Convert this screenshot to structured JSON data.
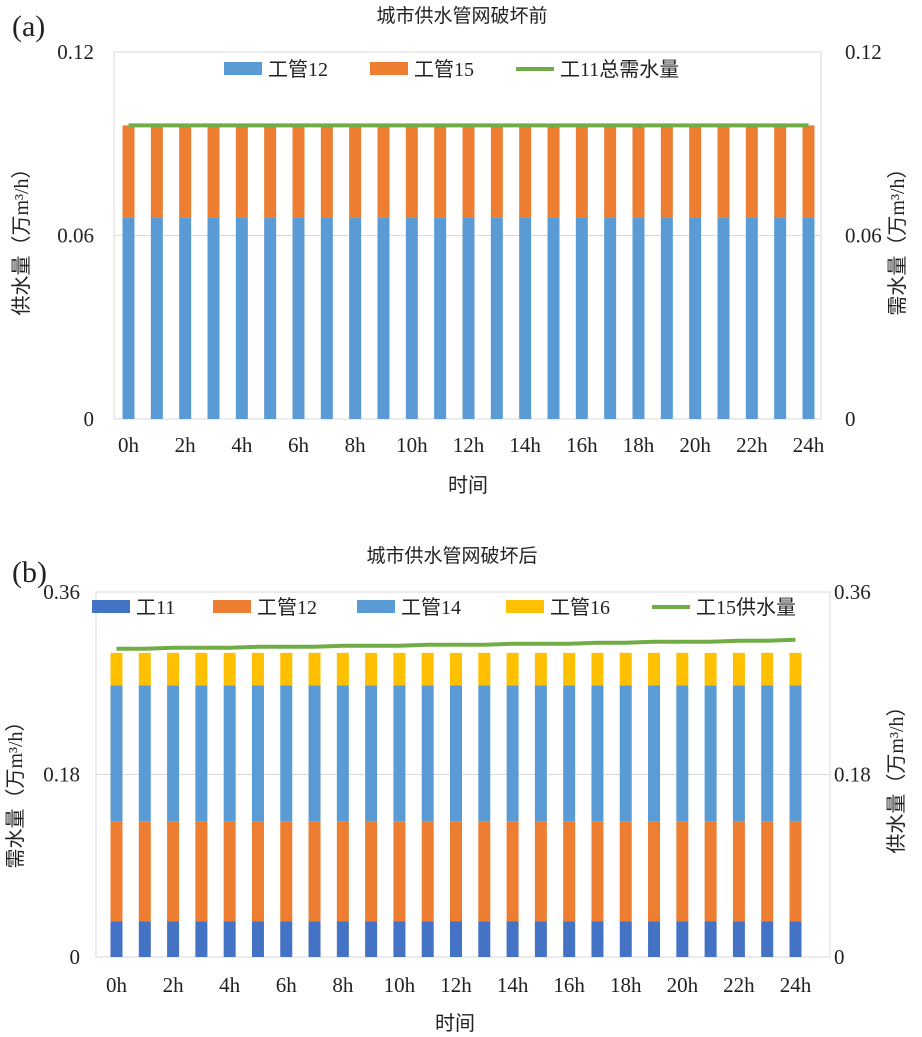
{
  "chart_data": [
    {
      "panel": "(a)",
      "type": "bar",
      "stacked": true,
      "title": "城市供水管网破坏前",
      "xlabel": "时间",
      "ylabel_left": "供水量（万m³/h）",
      "ylabel_right": "需水量（万m³/h）",
      "ylim": [
        0,
        0.12
      ],
      "yticks": [
        "0",
        "0.06",
        "0.12"
      ],
      "xtick_labels": [
        "0h",
        "2h",
        "4h",
        "6h",
        "8h",
        "10h",
        "12h",
        "14h",
        "16h",
        "18h",
        "20h",
        "22h",
        "24h"
      ],
      "categories": [
        "0h",
        "1h",
        "2h",
        "3h",
        "4h",
        "5h",
        "6h",
        "7h",
        "8h",
        "9h",
        "10h",
        "11h",
        "12h",
        "13h",
        "14h",
        "15h",
        "16h",
        "17h",
        "18h",
        "19h",
        "20h",
        "21h",
        "22h",
        "23h",
        "24h"
      ],
      "series": [
        {
          "name": "工管12",
          "kind": "bar",
          "color": "#5b9bd5",
          "values": [
            0.066,
            0.066,
            0.066,
            0.066,
            0.066,
            0.066,
            0.066,
            0.066,
            0.066,
            0.066,
            0.066,
            0.066,
            0.066,
            0.066,
            0.066,
            0.066,
            0.066,
            0.066,
            0.066,
            0.066,
            0.066,
            0.066,
            0.066,
            0.066,
            0.066
          ]
        },
        {
          "name": "工管15",
          "kind": "bar",
          "color": "#ed7d31",
          "values": [
            0.03,
            0.03,
            0.03,
            0.03,
            0.03,
            0.03,
            0.03,
            0.03,
            0.03,
            0.03,
            0.03,
            0.03,
            0.03,
            0.03,
            0.03,
            0.03,
            0.03,
            0.03,
            0.03,
            0.03,
            0.03,
            0.03,
            0.03,
            0.03,
            0.03
          ]
        },
        {
          "name": "工11总需水量",
          "kind": "line",
          "color": "#70ad47",
          "values": [
            0.096,
            0.096,
            0.096,
            0.096,
            0.096,
            0.096,
            0.096,
            0.096,
            0.096,
            0.096,
            0.096,
            0.096,
            0.096,
            0.096,
            0.096,
            0.096,
            0.096,
            0.096,
            0.096,
            0.096,
            0.096,
            0.096,
            0.096,
            0.096,
            0.096
          ]
        }
      ]
    },
    {
      "panel": "(b)",
      "type": "bar",
      "stacked": true,
      "title": "城市供水管网破坏后",
      "xlabel": "时间",
      "ylabel_left": "需水量（万m³/h）",
      "ylabel_right": "供水量（万m³/h）",
      "ylim": [
        0,
        0.36
      ],
      "yticks": [
        "0",
        "0.18",
        "0.36"
      ],
      "xtick_labels": [
        "0h",
        "2h",
        "4h",
        "6h",
        "8h",
        "10h",
        "12h",
        "14h",
        "16h",
        "18h",
        "20h",
        "22h",
        "24h"
      ],
      "categories": [
        "0h",
        "1h",
        "2h",
        "3h",
        "4h",
        "5h",
        "6h",
        "7h",
        "8h",
        "9h",
        "10h",
        "11h",
        "12h",
        "13h",
        "14h",
        "15h",
        "16h",
        "17h",
        "18h",
        "19h",
        "20h",
        "21h",
        "22h",
        "23h",
        "24h"
      ],
      "series": [
        {
          "name": "工11",
          "kind": "bar",
          "color": "#4472c4",
          "values": [
            0.035,
            0.035,
            0.035,
            0.035,
            0.035,
            0.035,
            0.035,
            0.035,
            0.035,
            0.035,
            0.035,
            0.035,
            0.035,
            0.035,
            0.035,
            0.035,
            0.035,
            0.035,
            0.035,
            0.035,
            0.035,
            0.035,
            0.035,
            0.035,
            0.035
          ]
        },
        {
          "name": "工管12",
          "kind": "bar",
          "color": "#ed7d31",
          "values": [
            0.099,
            0.099,
            0.099,
            0.099,
            0.099,
            0.099,
            0.099,
            0.099,
            0.099,
            0.099,
            0.099,
            0.099,
            0.099,
            0.099,
            0.099,
            0.099,
            0.099,
            0.099,
            0.099,
            0.099,
            0.099,
            0.099,
            0.099,
            0.099,
            0.099
          ]
        },
        {
          "name": "工管14",
          "kind": "bar",
          "color": "#5b9bd5",
          "values": [
            0.134,
            0.134,
            0.134,
            0.134,
            0.134,
            0.134,
            0.134,
            0.134,
            0.134,
            0.134,
            0.134,
            0.134,
            0.134,
            0.134,
            0.134,
            0.134,
            0.134,
            0.134,
            0.134,
            0.134,
            0.134,
            0.134,
            0.134,
            0.134,
            0.134
          ]
        },
        {
          "name": "工管16",
          "kind": "bar",
          "color": "#ffc000",
          "values": [
            0.032,
            0.032,
            0.032,
            0.032,
            0.032,
            0.032,
            0.032,
            0.032,
            0.032,
            0.032,
            0.032,
            0.032,
            0.032,
            0.032,
            0.032,
            0.032,
            0.032,
            0.032,
            0.032,
            0.032,
            0.032,
            0.032,
            0.032,
            0.032,
            0.032
          ]
        },
        {
          "name": "工15供水量",
          "kind": "line",
          "color": "#70ad47",
          "values": [
            0.304,
            0.304,
            0.305,
            0.305,
            0.305,
            0.306,
            0.306,
            0.306,
            0.307,
            0.307,
            0.307,
            0.308,
            0.308,
            0.308,
            0.309,
            0.309,
            0.309,
            0.31,
            0.31,
            0.311,
            0.311,
            0.311,
            0.312,
            0.312,
            0.313
          ]
        }
      ]
    }
  ]
}
